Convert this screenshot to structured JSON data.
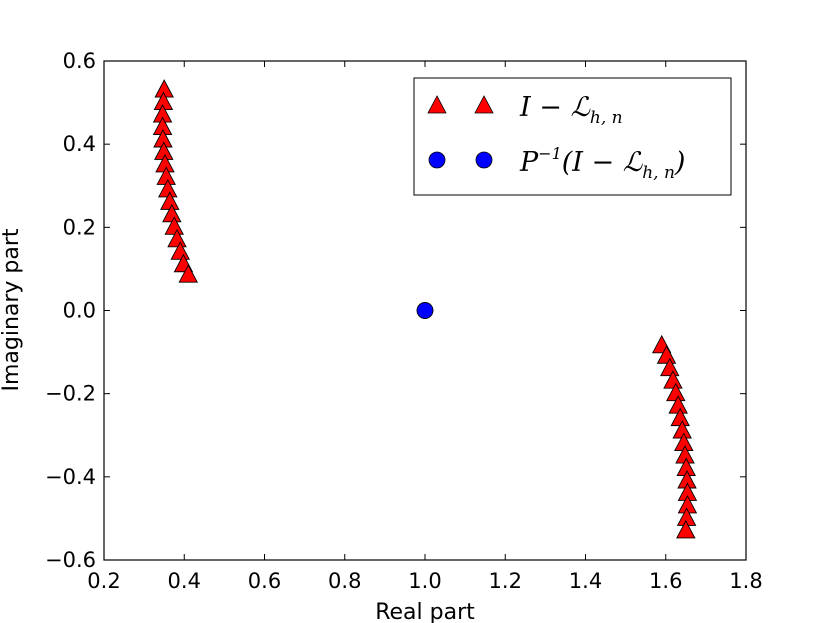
{
  "chart_data": {
    "type": "scatter",
    "xlabel": "Real part",
    "ylabel": "Imaginary part",
    "xlim": [
      0.2,
      1.8
    ],
    "ylim": [
      -0.6,
      0.6
    ],
    "x_ticks": [
      "0.2",
      "0.4",
      "0.6",
      "0.8",
      "1.0",
      "1.2",
      "1.4",
      "1.6",
      "1.8"
    ],
    "y_ticks": [
      "0.6",
      "0.4",
      "0.2",
      "0.0",
      "−0.2",
      "−0.4",
      "−0.6"
    ],
    "grid": false,
    "legend_position": "top-right",
    "series": [
      {
        "name": "I − ℒh,n",
        "marker": "triangle",
        "color": "#ff0000",
        "points": [
          [
            0.35,
            0.53
          ],
          [
            0.348,
            0.5
          ],
          [
            0.346,
            0.47
          ],
          [
            0.346,
            0.44
          ],
          [
            0.347,
            0.41
          ],
          [
            0.349,
            0.38
          ],
          [
            0.352,
            0.35
          ],
          [
            0.355,
            0.32
          ],
          [
            0.359,
            0.29
          ],
          [
            0.364,
            0.26
          ],
          [
            0.369,
            0.23
          ],
          [
            0.375,
            0.2
          ],
          [
            0.382,
            0.17
          ],
          [
            0.39,
            0.14
          ],
          [
            0.398,
            0.11
          ],
          [
            0.41,
            0.085
          ],
          [
            1.59,
            -0.085
          ],
          [
            1.602,
            -0.11
          ],
          [
            1.61,
            -0.14
          ],
          [
            1.618,
            -0.17
          ],
          [
            1.625,
            -0.2
          ],
          [
            1.631,
            -0.23
          ],
          [
            1.636,
            -0.26
          ],
          [
            1.641,
            -0.29
          ],
          [
            1.645,
            -0.32
          ],
          [
            1.648,
            -0.35
          ],
          [
            1.651,
            -0.38
          ],
          [
            1.653,
            -0.41
          ],
          [
            1.654,
            -0.44
          ],
          [
            1.654,
            -0.47
          ],
          [
            1.652,
            -0.5
          ],
          [
            1.65,
            -0.53
          ]
        ]
      },
      {
        "name": "P⁻¹(I − ℒh,n)",
        "marker": "circle",
        "color": "#0000ff",
        "points": [
          [
            1.0,
            0.0
          ]
        ]
      }
    ]
  },
  "legend": {
    "entries": [
      {
        "label_base": "I − ℒ",
        "label_sub": "h, n",
        "marker": "triangle",
        "color": "#ff0000"
      },
      {
        "label_base": "P",
        "label_sup": "−1",
        "label_rest": "(I − ℒ",
        "label_sub": "h, n",
        "label_end": ")",
        "marker": "circle",
        "color": "#0000ff"
      }
    ]
  }
}
